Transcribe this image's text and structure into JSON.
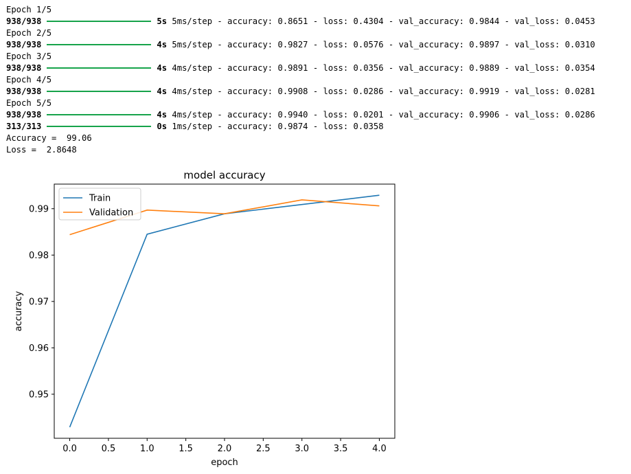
{
  "log": [
    {
      "kind": "epoch",
      "text": "Epoch 1/5"
    },
    {
      "kind": "step",
      "steps": "938/938",
      "time": "5s",
      "rest": "5ms/step - accuracy: 0.8651 - loss: 0.4304 - val_accuracy: 0.9844 - val_loss: 0.0453"
    },
    {
      "kind": "epoch",
      "text": "Epoch 2/5"
    },
    {
      "kind": "step",
      "steps": "938/938",
      "time": "4s",
      "rest": "5ms/step - accuracy: 0.9827 - loss: 0.0576 - val_accuracy: 0.9897 - val_loss: 0.0310"
    },
    {
      "kind": "epoch",
      "text": "Epoch 3/5"
    },
    {
      "kind": "step",
      "steps": "938/938",
      "time": "4s",
      "rest": "4ms/step - accuracy: 0.9891 - loss: 0.0356 - val_accuracy: 0.9889 - val_loss: 0.0354"
    },
    {
      "kind": "epoch",
      "text": "Epoch 4/5"
    },
    {
      "kind": "step",
      "steps": "938/938",
      "time": "4s",
      "rest": "4ms/step - accuracy: 0.9908 - loss: 0.0286 - val_accuracy: 0.9919 - val_loss: 0.0281"
    },
    {
      "kind": "epoch",
      "text": "Epoch 5/5"
    },
    {
      "kind": "step",
      "steps": "938/938",
      "time": "4s",
      "rest": "4ms/step - accuracy: 0.9940 - loss: 0.0201 - val_accuracy: 0.9906 - val_loss: 0.0286"
    },
    {
      "kind": "step",
      "steps": "313/313",
      "time": "0s",
      "rest": "1ms/step - accuracy: 0.9874 - loss: 0.0358"
    },
    {
      "kind": "plain",
      "text": "Accuracy =  99.06"
    },
    {
      "kind": "plain",
      "text": "Loss =  2.8648"
    }
  ],
  "colors": {
    "progress_bar": "#16a34a",
    "train": "#1f77b4",
    "validation": "#ff7f0e"
  },
  "chart_data": {
    "type": "line",
    "title": "model accuracy",
    "xlabel": "epoch",
    "ylabel": "accuracy",
    "x": [
      0,
      1,
      2,
      3,
      4
    ],
    "series": [
      {
        "name": "Train",
        "values": [
          0.9429,
          0.9845,
          0.9889,
          0.9909,
          0.9929
        ]
      },
      {
        "name": "Validation",
        "values": [
          0.9844,
          0.9897,
          0.9889,
          0.9919,
          0.9906
        ]
      }
    ],
    "xlim": [
      -0.2,
      4.2
    ],
    "ylim": [
      0.9405,
      0.9953
    ],
    "xticks": [
      0.0,
      0.5,
      1.0,
      1.5,
      2.0,
      2.5,
      3.0,
      3.5,
      4.0
    ],
    "xtick_labels": [
      "0.0",
      "0.5",
      "1.0",
      "1.5",
      "2.0",
      "2.5",
      "3.0",
      "3.5",
      "4.0"
    ],
    "yticks": [
      0.95,
      0.96,
      0.97,
      0.98,
      0.99
    ],
    "ytick_labels": [
      "0.95",
      "0.96",
      "0.97",
      "0.98",
      "0.99"
    ],
    "legend_position": "top-left",
    "grid": false
  }
}
